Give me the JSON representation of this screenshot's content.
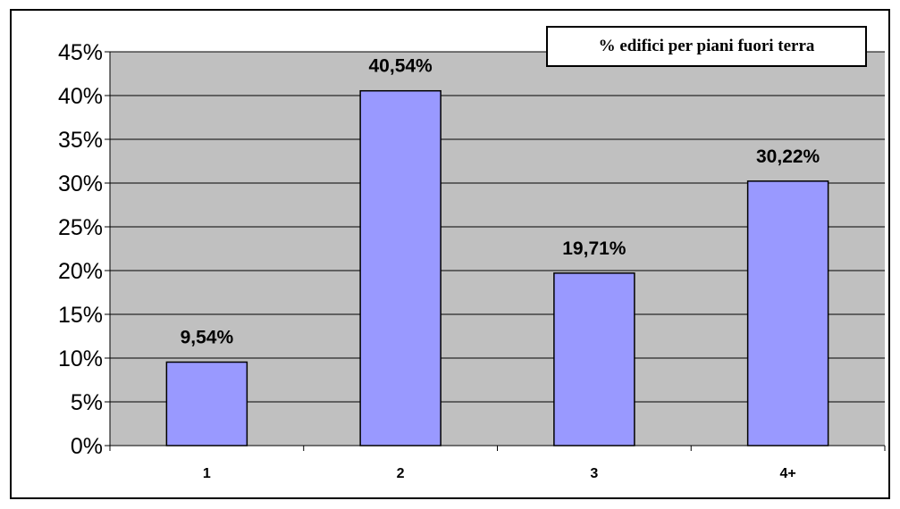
{
  "chart_data": {
    "type": "bar",
    "title": "% edifici per piani fuori terra",
    "xlabel": "",
    "ylabel": "",
    "categories": [
      "1",
      "2",
      "3",
      "4+"
    ],
    "values": [
      9.54,
      40.54,
      19.71,
      30.22
    ],
    "data_labels": [
      "9,54%",
      "40,54%",
      "19,71%",
      "30,22%"
    ],
    "yticks": [
      "0%",
      "5%",
      "10%",
      "15%",
      "20%",
      "25%",
      "30%",
      "35%",
      "40%",
      "45%"
    ],
    "ylim": [
      0,
      45
    ],
    "grid": true,
    "legend": "none",
    "colors": {
      "bar": "#9999ff",
      "plot_background": "#c0c0c0",
      "axis": "#000000"
    }
  }
}
